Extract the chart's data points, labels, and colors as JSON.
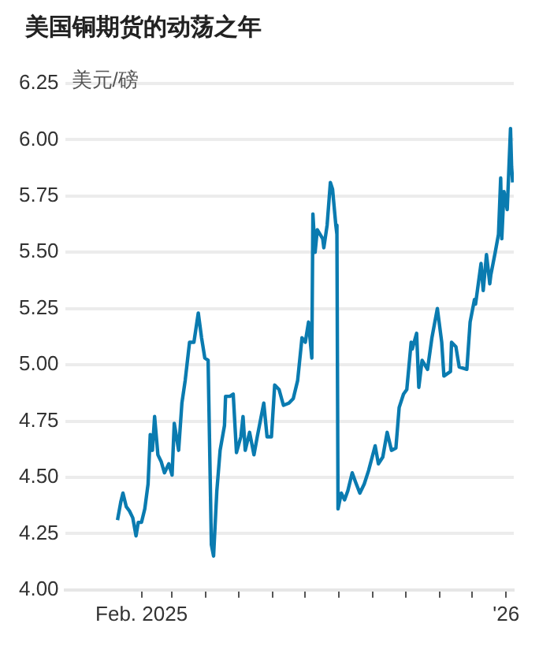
{
  "chart_data": {
    "type": "line",
    "title": "美国铜期货的动荡之年",
    "ylabel": "美元/磅",
    "x": [
      "2025-01-10",
      "2025-01-13",
      "2025-01-15",
      "2025-01-18",
      "2025-01-21",
      "2025-01-24",
      "2025-01-27",
      "2025-01-29",
      "2025-02-01",
      "2025-02-04",
      "2025-02-07",
      "2025-02-09",
      "2025-02-11",
      "2025-02-13",
      "2025-02-16",
      "2025-02-19",
      "2025-02-22",
      "2025-02-26",
      "2025-03-01",
      "2025-03-03",
      "2025-03-07",
      "2025-03-10",
      "2025-03-13",
      "2025-03-17",
      "2025-03-21",
      "2025-03-25",
      "2025-03-28",
      "2025-03-31",
      "2025-04-03",
      "2025-04-06",
      "2025-04-08",
      "2025-04-11",
      "2025-04-14",
      "2025-04-18",
      "2025-04-19",
      "2025-04-23",
      "2025-04-26",
      "2025-04-29",
      "2025-05-03",
      "2025-05-05",
      "2025-05-07",
      "2025-05-11",
      "2025-05-15",
      "2025-05-18",
      "2025-05-24",
      "2025-05-27",
      "2025-05-31",
      "2025-06-03",
      "2025-06-07",
      "2025-06-11",
      "2025-06-16",
      "2025-06-20",
      "2025-06-24",
      "2025-06-28",
      "2025-07-01",
      "2025-07-04",
      "2025-07-07",
      "2025-07-08",
      "2025-07-10",
      "2025-07-12",
      "2025-07-17",
      "2025-07-18",
      "2025-07-21",
      "2025-07-24",
      "2025-07-26",
      "2025-07-29",
      "2025-07-30",
      "2025-07-31",
      "2025-08-03",
      "2025-08-06",
      "2025-08-09",
      "2025-08-13",
      "2025-08-16",
      "2025-08-20",
      "2025-08-24",
      "2025-08-28",
      "2025-09-03",
      "2025-09-06",
      "2025-09-10",
      "2025-09-14",
      "2025-09-18",
      "2025-09-22",
      "2025-09-25",
      "2025-09-29",
      "2025-10-02",
      "2025-10-06",
      "2025-10-07",
      "2025-10-11",
      "2025-10-13",
      "2025-10-16",
      "2025-10-21",
      "2025-10-25",
      "2025-10-30",
      "2025-11-03",
      "2025-11-05",
      "2025-11-11",
      "2025-11-12",
      "2025-11-16",
      "2025-11-19",
      "2025-11-26",
      "2025-11-29",
      "2025-12-03",
      "2025-12-04",
      "2025-12-09",
      "2025-12-11",
      "2025-12-14",
      "2025-12-17",
      "2025-12-18",
      "2025-12-22",
      "2025-12-25",
      "2025-12-27",
      "2025-12-28",
      "2025-12-30",
      "2026-01-02",
      "2026-01-05",
      "2026-01-06",
      "2026-01-07"
    ],
    "series": [
      {
        "color": "#0a7bb0",
        "values": [
          4.31,
          4.39,
          4.43,
          4.37,
          4.35,
          4.32,
          4.24,
          4.3,
          4.3,
          4.36,
          4.47,
          4.69,
          4.62,
          4.77,
          4.6,
          4.57,
          4.52,
          4.56,
          4.51,
          4.74,
          4.62,
          4.83,
          4.93,
          5.1,
          5.1,
          5.23,
          5.12,
          5.03,
          5.02,
          4.2,
          4.15,
          4.44,
          4.62,
          4.73,
          4.86,
          4.86,
          4.87,
          4.61,
          4.68,
          4.77,
          4.62,
          4.7,
          4.6,
          4.68,
          4.83,
          4.68,
          4.68,
          4.91,
          4.89,
          4.82,
          4.83,
          4.85,
          4.93,
          5.12,
          5.1,
          5.19,
          5.03,
          5.67,
          5.5,
          5.6,
          5.56,
          5.52,
          5.62,
          5.81,
          5.78,
          5.62,
          5.58,
          4.36,
          4.43,
          4.4,
          4.44,
          4.52,
          4.48,
          4.43,
          4.47,
          4.53,
          4.64,
          4.56,
          4.59,
          4.7,
          4.62,
          4.63,
          4.81,
          4.87,
          4.89,
          5.1,
          5.07,
          5.14,
          4.9,
          5.02,
          4.98,
          5.12,
          5.25,
          5.1,
          4.95,
          4.97,
          5.1,
          5.08,
          4.99,
          4.98,
          5.19,
          5.29,
          5.27,
          5.45,
          5.33,
          5.49,
          5.36,
          5.4,
          5.5,
          5.58,
          5.83,
          5.56,
          5.77,
          5.69,
          6.05,
          5.88,
          5.81
        ]
      }
    ],
    "xlim": [
      "2024-11-23",
      "2026-01-08"
    ],
    "xticks": [
      {
        "value": "2025-02-01",
        "label": "Feb. 2025"
      },
      {
        "value": "2025-03-01",
        "label": null
      },
      {
        "value": "2025-04-01",
        "label": null
      },
      {
        "value": "2025-05-01",
        "label": null
      },
      {
        "value": "2025-06-01",
        "label": null
      },
      {
        "value": "2025-07-01",
        "label": null
      },
      {
        "value": "2025-08-01",
        "label": null
      },
      {
        "value": "2025-09-01",
        "label": null
      },
      {
        "value": "2025-10-01",
        "label": null
      },
      {
        "value": "2025-11-01",
        "label": null
      },
      {
        "value": "2025-12-01",
        "label": null
      },
      {
        "value": "2026-01-01",
        "label": "'26"
      }
    ],
    "ylim": [
      4.0,
      6.25
    ],
    "yticks": [
      {
        "value": 4,
        "label": "4.00"
      },
      {
        "value": 4.25,
        "label": "4.25"
      },
      {
        "value": 4.5,
        "label": "4.50"
      },
      {
        "value": 4.75,
        "label": "4.75"
      },
      {
        "value": 5,
        "label": "5.00"
      },
      {
        "value": 5.25,
        "label": "5.25"
      },
      {
        "value": 5.5,
        "label": "5.50"
      },
      {
        "value": 5.75,
        "label": "5.75"
      },
      {
        "value": 6,
        "label": "6.00"
      },
      {
        "value": 6.25,
        "label": "6.25"
      }
    ],
    "grid": "y",
    "legend": false,
    "marker": "none",
    "line_style": "solid"
  }
}
